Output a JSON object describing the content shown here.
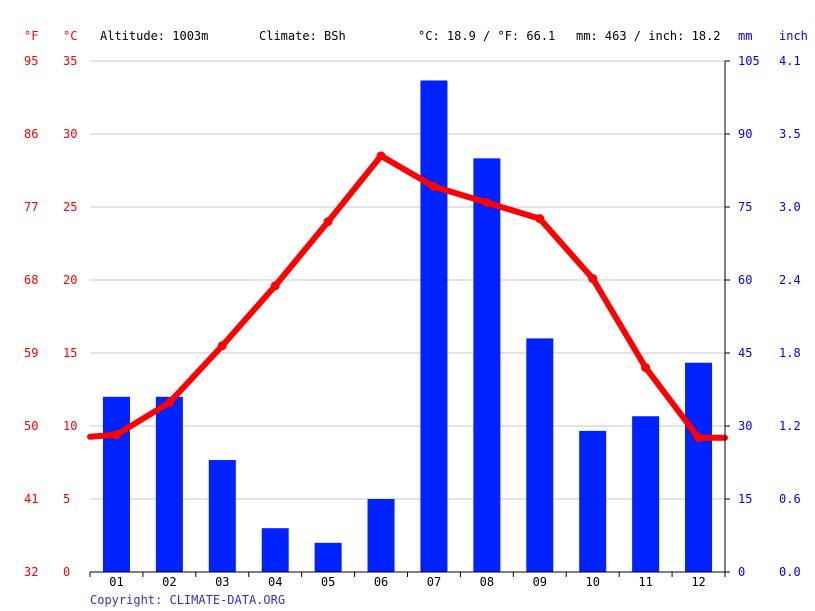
{
  "header": {
    "unit_f": "°F",
    "unit_c": "°C",
    "altitude": "Altitude: 1003m",
    "climate": "Climate: BSh",
    "temp_avg": "°C: 18.9 / °F: 66.1",
    "precip_avg": "mm: 463 / inch: 18.2",
    "unit_mm": "mm",
    "unit_inch": "inch"
  },
  "footer": {
    "copyright": "Copyright: CLIMATE-DATA.ORG"
  },
  "colors": {
    "temperature": "#ff0000",
    "precipitation": "#0022ff",
    "grid": "#c8c8c8"
  },
  "chart_data": {
    "type": "bar",
    "categories": [
      "01",
      "02",
      "03",
      "04",
      "05",
      "06",
      "07",
      "08",
      "09",
      "10",
      "11",
      "12"
    ],
    "series": [
      {
        "type": "bar",
        "axis": "mm",
        "values": [
          36,
          36,
          23,
          9,
          6,
          15,
          101,
          85,
          48,
          29,
          32,
          43
        ]
      },
      {
        "type": "line",
        "axis": "°C",
        "values": [
          9.4,
          11.6,
          15.5,
          19.6,
          24.0,
          28.5,
          26.4,
          25.3,
          24.2,
          20.1,
          14.0,
          9.2
        ]
      }
    ],
    "ylim_c": [
      0,
      35
    ],
    "ylim_mm": [
      0,
      105
    ],
    "ticks_f": [
      "32",
      "41",
      "50",
      "59",
      "68",
      "77",
      "86",
      "95"
    ],
    "ticks_c": [
      "0",
      "5",
      "10",
      "15",
      "20",
      "25",
      "30",
      "35"
    ],
    "ticks_mm": [
      "0",
      "15",
      "30",
      "45",
      "60",
      "75",
      "90",
      "105"
    ],
    "ticks_inch": [
      "0.0",
      "0.6",
      "1.2",
      "1.8",
      "2.4",
      "3.0",
      "3.5",
      "4.1"
    ],
    "grid": true
  }
}
